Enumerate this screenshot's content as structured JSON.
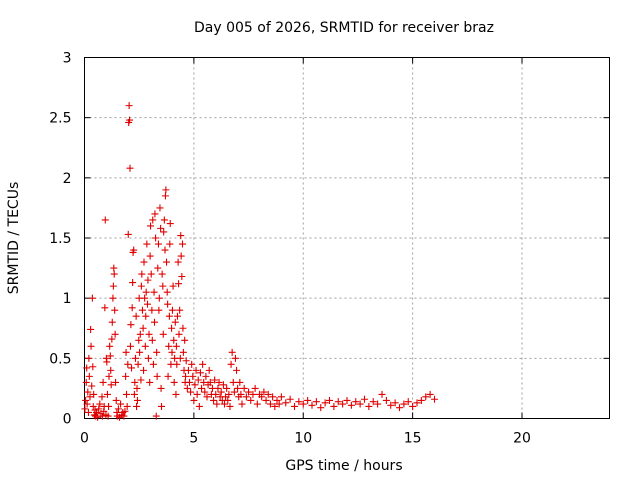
{
  "chart_data": {
    "type": "scatter",
    "title": "Day 005 of 2026, SRMTID for receiver braz",
    "xlabel": "GPS time / hours",
    "ylabel": "SRMTID / TECUs",
    "xlim": [
      0,
      24
    ],
    "ylim": [
      0,
      3
    ],
    "xticks": [
      0,
      5,
      10,
      15,
      20
    ],
    "xtick_labels": [
      "0",
      "5",
      "10",
      "15",
      "20"
    ],
    "yticks": [
      0,
      0.5,
      1,
      1.5,
      2,
      2.5,
      3
    ],
    "ytick_labels": [
      "0",
      "0.5",
      "1",
      "1.5",
      "2",
      "2.5",
      "3"
    ],
    "grid": true,
    "marker": "+",
    "color": "#e00000",
    "series": [
      {
        "name": "SRMTID",
        "points": [
          [
            0.02,
            0.08
          ],
          [
            0.05,
            0.15
          ],
          [
            0.08,
            0.3
          ],
          [
            0.1,
            0.42
          ],
          [
            0.12,
            0.12
          ],
          [
            0.15,
            0.22
          ],
          [
            0.18,
            0.05
          ],
          [
            0.2,
            0.5
          ],
          [
            0.22,
            0.35
          ],
          [
            0.25,
            0.18
          ],
          [
            0.28,
            0.74
          ],
          [
            0.3,
            0.6
          ],
          [
            0.33,
            0.27
          ],
          [
            0.36,
            1.0
          ],
          [
            0.38,
            0.43
          ],
          [
            0.4,
            0.1
          ],
          [
            0.42,
            0.2
          ],
          [
            0.45,
            0.03
          ],
          [
            0.48,
            0.07
          ],
          [
            0.5,
            0.02
          ],
          [
            0.55,
            0.05
          ],
          [
            0.6,
            0.01
          ],
          [
            0.65,
            0.08
          ],
          [
            0.7,
            0.12
          ],
          [
            0.75,
            0.04
          ],
          [
            0.8,
            0.18
          ],
          [
            0.82,
            0.02
          ],
          [
            0.85,
            0.3
          ],
          [
            0.88,
            0.06
          ],
          [
            0.9,
            0.1
          ],
          [
            0.93,
            0.92
          ],
          [
            0.95,
            1.65
          ],
          [
            0.98,
            0.03
          ],
          [
            1.0,
            0.5
          ],
          [
            1.02,
            0.47
          ],
          [
            1.05,
            0.2
          ],
          [
            1.08,
            0.02
          ],
          [
            1.1,
            0.1
          ],
          [
            1.12,
            0.35
          ],
          [
            1.15,
            0.6
          ],
          [
            1.18,
            0.52
          ],
          [
            1.2,
            0.4
          ],
          [
            1.22,
            0.28
          ],
          [
            1.25,
            0.66
          ],
          [
            1.27,
            0.8
          ],
          [
            1.3,
            1.0
          ],
          [
            1.32,
            1.1
          ],
          [
            1.34,
            1.25
          ],
          [
            1.36,
            1.2
          ],
          [
            1.38,
            0.9
          ],
          [
            1.4,
            0.7
          ],
          [
            1.42,
            0.3
          ],
          [
            1.45,
            0.15
          ],
          [
            1.48,
            0.05
          ],
          [
            1.5,
            0.02
          ],
          [
            1.55,
            0.08
          ],
          [
            1.6,
            0.01
          ],
          [
            1.65,
            0.12
          ],
          [
            1.7,
            0.03
          ],
          [
            1.75,
            0.05
          ],
          [
            1.8,
            0.02
          ],
          [
            1.85,
            0.06
          ],
          [
            1.88,
            0.35
          ],
          [
            1.9,
            0.55
          ],
          [
            1.92,
            0.2
          ],
          [
            1.95,
            0.1
          ],
          [
            1.98,
            0.45
          ],
          [
            2.0,
            1.53
          ],
          [
            2.02,
            2.46
          ],
          [
            2.04,
            2.6
          ],
          [
            2.06,
            2.48
          ],
          [
            2.08,
            2.08
          ],
          [
            2.1,
            0.6
          ],
          [
            2.12,
            0.78
          ],
          [
            2.15,
            0.42
          ],
          [
            2.18,
            0.92
          ],
          [
            2.2,
            1.13
          ],
          [
            2.22,
            1.38
          ],
          [
            2.25,
            1.4
          ],
          [
            2.28,
            0.2
          ],
          [
            2.3,
            0.3
          ],
          [
            2.33,
            0.5
          ],
          [
            2.36,
            0.85
          ],
          [
            2.38,
            0.1
          ],
          [
            2.4,
            0.25
          ],
          [
            2.42,
            0.15
          ],
          [
            2.45,
            0.45
          ],
          [
            2.48,
            0.65
          ],
          [
            2.5,
            1.0
          ],
          [
            2.52,
            0.55
          ],
          [
            2.55,
            0.7
          ],
          [
            2.58,
            0.32
          ],
          [
            2.6,
            1.1
          ],
          [
            2.62,
            1.2
          ],
          [
            2.65,
            0.9
          ],
          [
            2.68,
            0.75
          ],
          [
            2.7,
            0.4
          ],
          [
            2.72,
            1.3
          ],
          [
            2.75,
            1.0
          ],
          [
            2.78,
            0.6
          ],
          [
            2.8,
            0.85
          ],
          [
            2.82,
            1.05
          ],
          [
            2.85,
            1.45
          ],
          [
            2.88,
            0.95
          ],
          [
            2.9,
            1.15
          ],
          [
            2.92,
            0.5
          ],
          [
            2.95,
            0.7
          ],
          [
            2.98,
            0.3
          ],
          [
            3.0,
            1.35
          ],
          [
            3.02,
            1.6
          ],
          [
            3.05,
            1.2
          ],
          [
            3.08,
            0.9
          ],
          [
            3.1,
            0.65
          ],
          [
            3.12,
            1.65
          ],
          [
            3.15,
            0.45
          ],
          [
            3.18,
            1.05
          ],
          [
            3.2,
            0.8
          ],
          [
            3.22,
            1.7
          ],
          [
            3.25,
            1.5
          ],
          [
            3.28,
            0.02
          ],
          [
            3.3,
            0.55
          ],
          [
            3.32,
            0.35
          ],
          [
            3.35,
            1.25
          ],
          [
            3.38,
            1.45
          ],
          [
            3.4,
            0.9
          ],
          [
            3.42,
            1.0
          ],
          [
            3.45,
            1.75
          ],
          [
            3.48,
            1.58
          ],
          [
            3.5,
            0.25
          ],
          [
            3.52,
            0.1
          ],
          [
            3.55,
            1.2
          ],
          [
            3.58,
            1.1
          ],
          [
            3.6,
            0.7
          ],
          [
            3.62,
            1.55
          ],
          [
            3.65,
            1.65
          ],
          [
            3.68,
            1.4
          ],
          [
            3.7,
            1.85
          ],
          [
            3.72,
            1.9
          ],
          [
            3.75,
            1.3
          ],
          [
            3.78,
            1.05
          ],
          [
            3.8,
            0.95
          ],
          [
            3.82,
            0.35
          ],
          [
            3.85,
            0.6
          ],
          [
            3.88,
            0.85
          ],
          [
            3.9,
            1.45
          ],
          [
            3.92,
            1.62
          ],
          [
            3.95,
            0.45
          ],
          [
            3.98,
            0.75
          ],
          [
            4.0,
            0.55
          ],
          [
            4.02,
            0.9
          ],
          [
            4.05,
            1.1
          ],
          [
            4.08,
            0.65
          ],
          [
            4.1,
            0.3
          ],
          [
            4.12,
            0.5
          ],
          [
            4.15,
            0.8
          ],
          [
            4.18,
            0.2
          ],
          [
            4.2,
            0.6
          ],
          [
            4.22,
            0.45
          ],
          [
            4.25,
            0.85
          ],
          [
            4.28,
            1.3
          ],
          [
            4.3,
            1.12
          ],
          [
            4.32,
            0.7
          ],
          [
            4.35,
            0.9
          ],
          [
            4.38,
            0.5
          ],
          [
            4.4,
            1.52
          ],
          [
            4.42,
            1.35
          ],
          [
            4.45,
            1.18
          ],
          [
            4.48,
            1.45
          ],
          [
            4.5,
            0.75
          ],
          [
            4.52,
            0.55
          ],
          [
            4.55,
            0.4
          ],
          [
            4.58,
            0.65
          ],
          [
            4.6,
            0.3
          ],
          [
            4.62,
            0.35
          ],
          [
            4.65,
            0.48
          ],
          [
            4.7,
            0.25
          ],
          [
            4.75,
            0.4
          ],
          [
            4.8,
            0.3
          ],
          [
            4.85,
            0.22
          ],
          [
            4.9,
            0.45
          ],
          [
            4.95,
            0.35
          ],
          [
            5.0,
            0.15
          ],
          [
            5.05,
            0.28
          ],
          [
            5.1,
            0.4
          ],
          [
            5.15,
            0.2
          ],
          [
            5.2,
            0.32
          ],
          [
            5.25,
            0.1
          ],
          [
            5.3,
            0.38
          ],
          [
            5.35,
            0.25
          ],
          [
            5.4,
            0.45
          ],
          [
            5.45,
            0.3
          ],
          [
            5.5,
            0.22
          ],
          [
            5.55,
            0.35
          ],
          [
            5.6,
            0.18
          ],
          [
            5.65,
            0.28
          ],
          [
            5.7,
            0.4
          ],
          [
            5.75,
            0.3
          ],
          [
            5.8,
            0.2
          ],
          [
            5.85,
            0.25
          ],
          [
            5.9,
            0.15
          ],
          [
            5.95,
            0.32
          ],
          [
            6.0,
            0.2
          ],
          [
            6.05,
            0.12
          ],
          [
            6.1,
            0.25
          ],
          [
            6.15,
            0.3
          ],
          [
            6.2,
            0.18
          ],
          [
            6.25,
            0.22
          ],
          [
            6.3,
            0.15
          ],
          [
            6.35,
            0.28
          ],
          [
            6.4,
            0.12
          ],
          [
            6.45,
            0.18
          ],
          [
            6.5,
            0.25
          ],
          [
            6.55,
            0.15
          ],
          [
            6.6,
            0.2
          ],
          [
            6.65,
            0.1
          ],
          [
            6.7,
            0.45
          ],
          [
            6.75,
            0.55
          ],
          [
            6.8,
            0.3
          ],
          [
            6.85,
            0.22
          ],
          [
            6.9,
            0.5
          ],
          [
            6.95,
            0.4
          ],
          [
            7.0,
            0.25
          ],
          [
            7.05,
            0.18
          ],
          [
            7.1,
            0.3
          ],
          [
            7.15,
            0.2
          ],
          [
            7.2,
            0.12
          ],
          [
            7.3,
            0.25
          ],
          [
            7.4,
            0.18
          ],
          [
            7.5,
            0.22
          ],
          [
            7.6,
            0.15
          ],
          [
            7.7,
            0.2
          ],
          [
            7.8,
            0.25
          ],
          [
            7.9,
            0.12
          ],
          [
            8.0,
            0.2
          ],
          [
            8.1,
            0.18
          ],
          [
            8.2,
            0.22
          ],
          [
            8.3,
            0.15
          ],
          [
            8.4,
            0.2
          ],
          [
            8.5,
            0.12
          ],
          [
            8.6,
            0.18
          ],
          [
            8.7,
            0.1
          ],
          [
            8.8,
            0.15
          ],
          [
            8.9,
            0.12
          ],
          [
            9.0,
            0.18
          ],
          [
            9.2,
            0.13
          ],
          [
            9.4,
            0.16
          ],
          [
            9.6,
            0.1
          ],
          [
            9.8,
            0.14
          ],
          [
            10.0,
            0.12
          ],
          [
            10.2,
            0.15
          ],
          [
            10.4,
            0.11
          ],
          [
            10.6,
            0.14
          ],
          [
            10.8,
            0.09
          ],
          [
            11.0,
            0.13
          ],
          [
            11.2,
            0.15
          ],
          [
            11.4,
            0.1
          ],
          [
            11.6,
            0.14
          ],
          [
            11.8,
            0.12
          ],
          [
            12.0,
            0.15
          ],
          [
            12.2,
            0.11
          ],
          [
            12.4,
            0.14
          ],
          [
            12.6,
            0.12
          ],
          [
            12.8,
            0.16
          ],
          [
            13.0,
            0.1
          ],
          [
            13.2,
            0.14
          ],
          [
            13.4,
            0.12
          ],
          [
            13.6,
            0.2
          ],
          [
            13.8,
            0.15
          ],
          [
            14.0,
            0.11
          ],
          [
            14.2,
            0.13
          ],
          [
            14.4,
            0.09
          ],
          [
            14.6,
            0.12
          ],
          [
            14.8,
            0.14
          ],
          [
            15.0,
            0.1
          ],
          [
            15.2,
            0.13
          ],
          [
            15.4,
            0.15
          ],
          [
            15.6,
            0.18
          ],
          [
            15.8,
            0.2
          ],
          [
            16.0,
            0.16
          ]
        ]
      }
    ]
  }
}
